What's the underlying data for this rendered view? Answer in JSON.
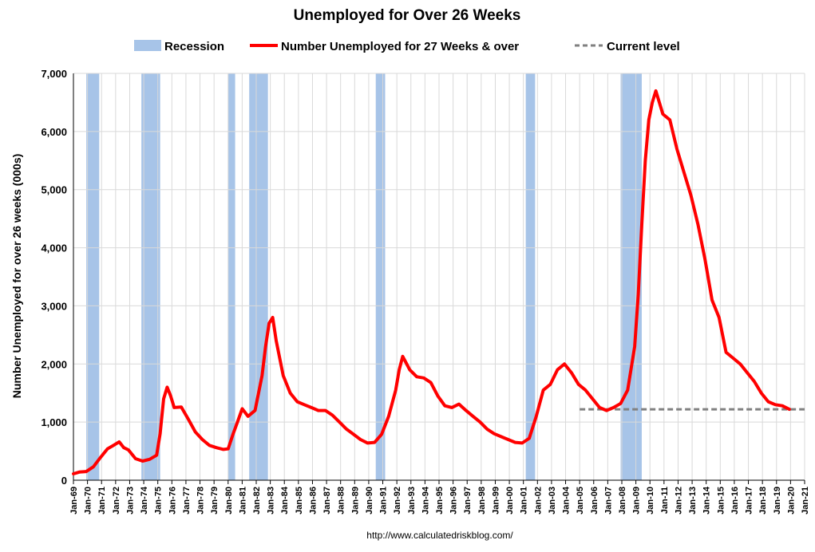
{
  "chart_data": {
    "type": "line",
    "title": "Unemployed for Over 26 Weeks",
    "ylabel": "Number Unemployed for over 26 weeks (000s)",
    "xlabel": "",
    "source": "http://www.calculatedriskblog.com/",
    "ylim": [
      0,
      7000
    ],
    "yticks": [
      0,
      1000,
      2000,
      3000,
      4000,
      5000,
      6000,
      7000
    ],
    "ytick_labels": [
      "0",
      "1,000",
      "2,000",
      "3,000",
      "4,000",
      "5,000",
      "6,000",
      "7,000"
    ],
    "xlim": [
      "1969-01",
      "2021-01"
    ],
    "xtick_labels": [
      "Jan-69",
      "Jan-70",
      "Jan-71",
      "Jan-72",
      "Jan-73",
      "Jan-74",
      "Jan-75",
      "Jan-76",
      "Jan-77",
      "Jan-78",
      "Jan-79",
      "Jan-80",
      "Jan-81",
      "Jan-82",
      "Jan-83",
      "Jan-84",
      "Jan-85",
      "Jan-86",
      "Jan-87",
      "Jan-88",
      "Jan-89",
      "Jan-90",
      "Jan-91",
      "Jan-92",
      "Jan-93",
      "Jan-94",
      "Jan-95",
      "Jan-96",
      "Jan-97",
      "Jan-98",
      "Jan-99",
      "Jan-00",
      "Jan-01",
      "Jan-02",
      "Jan-03",
      "Jan-04",
      "Jan-05",
      "Jan-06",
      "Jan-07",
      "Jan-08",
      "Jan-09",
      "Jan-10",
      "Jan-11",
      "Jan-12",
      "Jan-13",
      "Jan-14",
      "Jan-15",
      "Jan-16",
      "Jan-17",
      "Jan-18",
      "Jan-19",
      "Jan-20",
      "Jan-21"
    ],
    "grid": true,
    "legend_position": "top",
    "legend": [
      {
        "label": "Recession",
        "kind": "band",
        "color": "#a7c4e8"
      },
      {
        "label": "Number Unemployed for 27 Weeks & over",
        "kind": "line",
        "color": "#ff0000"
      },
      {
        "label": "Current level",
        "kind": "dashed",
        "color": "#808080"
      }
    ],
    "recessions": [
      {
        "start": "1969-12",
        "end": "1970-11"
      },
      {
        "start": "1973-11",
        "end": "1975-03"
      },
      {
        "start": "1980-01",
        "end": "1980-07"
      },
      {
        "start": "1981-07",
        "end": "1982-11"
      },
      {
        "start": "1990-07",
        "end": "1991-03"
      },
      {
        "start": "2001-03",
        "end": "2001-11"
      },
      {
        "start": "2007-12",
        "end": "2009-06"
      }
    ],
    "series": [
      {
        "name": "Number Unemployed for 27 Weeks & over",
        "color": "#ff0000",
        "points": [
          [
            "1969-01",
            110
          ],
          [
            "1969-06",
            140
          ],
          [
            "1969-12",
            150
          ],
          [
            "1970-06",
            230
          ],
          [
            "1970-12",
            390
          ],
          [
            "1971-06",
            540
          ],
          [
            "1971-12",
            610
          ],
          [
            "1972-04",
            660
          ],
          [
            "1972-08",
            560
          ],
          [
            "1972-12",
            520
          ],
          [
            "1973-06",
            370
          ],
          [
            "1973-12",
            330
          ],
          [
            "1974-06",
            360
          ],
          [
            "1974-12",
            430
          ],
          [
            "1975-03",
            800
          ],
          [
            "1975-06",
            1400
          ],
          [
            "1975-09",
            1600
          ],
          [
            "1975-12",
            1450
          ],
          [
            "1976-03",
            1250
          ],
          [
            "1976-09",
            1260
          ],
          [
            "1977-03",
            1050
          ],
          [
            "1977-09",
            830
          ],
          [
            "1978-03",
            700
          ],
          [
            "1978-09",
            600
          ],
          [
            "1979-03",
            560
          ],
          [
            "1979-09",
            530
          ],
          [
            "1980-01",
            540
          ],
          [
            "1980-05",
            780
          ],
          [
            "1980-09",
            1000
          ],
          [
            "1981-01",
            1230
          ],
          [
            "1981-06",
            1100
          ],
          [
            "1981-12",
            1200
          ],
          [
            "1982-06",
            1800
          ],
          [
            "1982-09",
            2300
          ],
          [
            "1982-12",
            2700
          ],
          [
            "1983-03",
            2800
          ],
          [
            "1983-06",
            2400
          ],
          [
            "1983-12",
            1800
          ],
          [
            "1984-06",
            1500
          ],
          [
            "1984-12",
            1350
          ],
          [
            "1985-06",
            1300
          ],
          [
            "1985-12",
            1250
          ],
          [
            "1986-06",
            1200
          ],
          [
            "1986-12",
            1200
          ],
          [
            "1987-06",
            1120
          ],
          [
            "1987-12",
            1000
          ],
          [
            "1988-06",
            880
          ],
          [
            "1988-12",
            790
          ],
          [
            "1989-06",
            700
          ],
          [
            "1989-12",
            640
          ],
          [
            "1990-06",
            650
          ],
          [
            "1990-12",
            790
          ],
          [
            "1991-06",
            1100
          ],
          [
            "1991-12",
            1550
          ],
          [
            "1992-03",
            1900
          ],
          [
            "1992-06",
            2130
          ],
          [
            "1992-12",
            1900
          ],
          [
            "1993-06",
            1780
          ],
          [
            "1993-12",
            1760
          ],
          [
            "1994-06",
            1680
          ],
          [
            "1994-12",
            1450
          ],
          [
            "1995-06",
            1280
          ],
          [
            "1995-12",
            1250
          ],
          [
            "1996-06",
            1310
          ],
          [
            "1996-12",
            1200
          ],
          [
            "1997-06",
            1100
          ],
          [
            "1997-12",
            1000
          ],
          [
            "1998-06",
            880
          ],
          [
            "1998-12",
            800
          ],
          [
            "1999-06",
            750
          ],
          [
            "1999-12",
            700
          ],
          [
            "2000-06",
            650
          ],
          [
            "2000-12",
            640
          ],
          [
            "2001-06",
            720
          ],
          [
            "2001-12",
            1100
          ],
          [
            "2002-06",
            1550
          ],
          [
            "2002-12",
            1650
          ],
          [
            "2003-06",
            1900
          ],
          [
            "2003-12",
            2000
          ],
          [
            "2004-06",
            1850
          ],
          [
            "2004-12",
            1650
          ],
          [
            "2005-06",
            1550
          ],
          [
            "2005-12",
            1400
          ],
          [
            "2006-06",
            1250
          ],
          [
            "2006-12",
            1200
          ],
          [
            "2007-06",
            1250
          ],
          [
            "2007-12",
            1320
          ],
          [
            "2008-06",
            1550
          ],
          [
            "2008-12",
            2300
          ],
          [
            "2009-03",
            3200
          ],
          [
            "2009-06",
            4400
          ],
          [
            "2009-09",
            5500
          ],
          [
            "2009-12",
            6200
          ],
          [
            "2010-03",
            6500
          ],
          [
            "2010-06",
            6700
          ],
          [
            "2010-12",
            6300
          ],
          [
            "2011-06",
            6200
          ],
          [
            "2011-12",
            5700
          ],
          [
            "2012-06",
            5300
          ],
          [
            "2012-12",
            4900
          ],
          [
            "2013-06",
            4400
          ],
          [
            "2013-12",
            3800
          ],
          [
            "2014-06",
            3100
          ],
          [
            "2014-12",
            2800
          ],
          [
            "2015-06",
            2200
          ],
          [
            "2015-12",
            2100
          ],
          [
            "2016-06",
            2000
          ],
          [
            "2016-12",
            1850
          ],
          [
            "2017-06",
            1700
          ],
          [
            "2017-12",
            1500
          ],
          [
            "2018-06",
            1350
          ],
          [
            "2018-12",
            1300
          ],
          [
            "2019-06",
            1280
          ],
          [
            "2019-12",
            1220
          ]
        ]
      }
    ],
    "current_level": {
      "value": 1220,
      "from": "2005-01",
      "to": "2021-01",
      "color": "#808080"
    }
  }
}
